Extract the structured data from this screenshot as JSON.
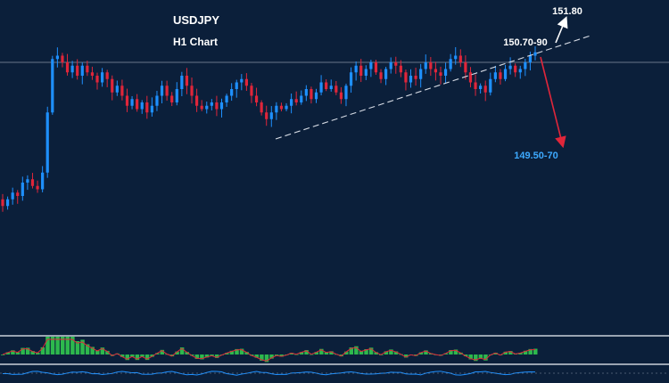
{
  "chart_data": {
    "type": "candlestick",
    "title": "USDJPY",
    "subtitle": "H1 Chart",
    "instrument": "USDJPY",
    "timeframe": "H1",
    "levels": {
      "upper_target": "151.80",
      "resistance": "150.70-90",
      "lower_target": "149.50-70"
    },
    "colors": {
      "background": "#0b1f3a",
      "bull": "#1e90ff",
      "bear": "#e0263a",
      "trendline": "#d8dde6",
      "up_arrow": "#ffffff",
      "down_arrow": "#e0263a",
      "lower_target_text": "#3da9ff",
      "osc_green": "#2db84d",
      "osc_line": "#e0263a",
      "grid": "#8a95a5"
    },
    "annotations": [
      {
        "type": "trendline",
        "style": "dashed",
        "direction": "rising support"
      },
      {
        "type": "arrow",
        "direction": "up",
        "target": "151.80"
      },
      {
        "type": "arrow",
        "direction": "down",
        "target": "149.50-70"
      },
      {
        "type": "horizontal-line",
        "level": "current price"
      }
    ],
    "indicators": [
      "histogram-oscillator",
      "line-oscillator"
    ],
    "closes": [
      148.55,
      148.65,
      148.75,
      148.7,
      148.9,
      148.95,
      148.85,
      148.8,
      149.05,
      149.95,
      150.75,
      150.8,
      150.7,
      150.55,
      150.65,
      150.5,
      150.65,
      150.55,
      150.5,
      150.4,
      150.55,
      150.45,
      150.25,
      150.35,
      150.2,
      150.05,
      150.15,
      150.0,
      150.1,
      149.95,
      150.05,
      150.2,
      150.35,
      150.2,
      150.1,
      150.3,
      150.5,
      150.35,
      150.2,
      150.05,
      150.0,
      150.05,
      150.1,
      150.0,
      150.1,
      150.2,
      150.3,
      150.4,
      150.45,
      150.35,
      150.2,
      150.1,
      149.95,
      149.85,
      149.95,
      150.05,
      150.0,
      150.05,
      150.15,
      150.1,
      150.2,
      150.3,
      150.15,
      150.25,
      150.4,
      150.3,
      150.35,
      150.25,
      150.15,
      150.35,
      150.55,
      150.65,
      150.5,
      150.6,
      150.7,
      150.55,
      150.45,
      150.6,
      150.7,
      150.65,
      150.55,
      150.4,
      150.5,
      150.45,
      150.6,
      150.7,
      150.6,
      150.55,
      150.5,
      150.6,
      150.75,
      150.8,
      150.7,
      150.55,
      150.4,
      150.3,
      150.35,
      150.25,
      150.45,
      150.55,
      150.45,
      150.6,
      150.65,
      150.55,
      150.6,
      150.7,
      150.8,
      150.85
    ]
  }
}
